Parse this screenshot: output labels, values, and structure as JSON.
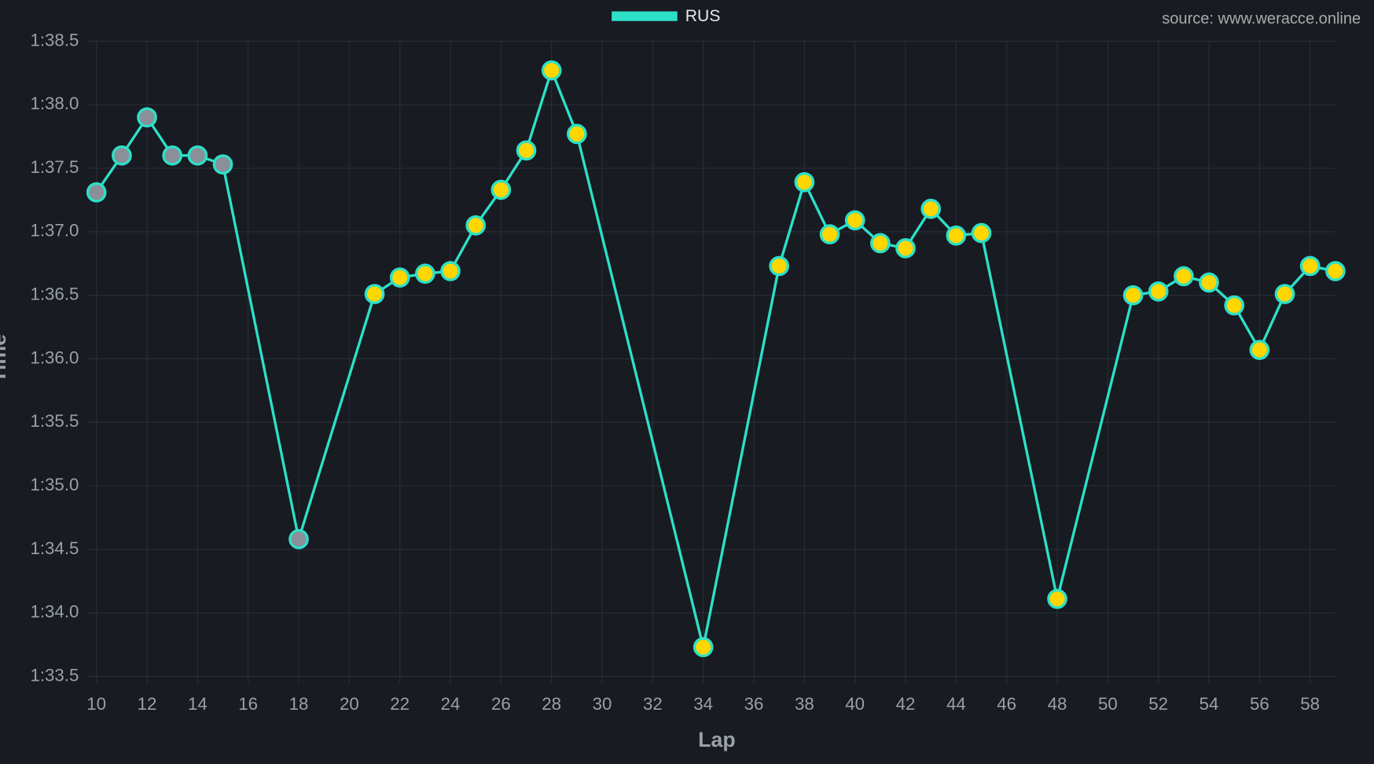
{
  "chart_data": {
    "type": "line",
    "legend": "RUS",
    "watermark": "source: www.weracce.online",
    "x_label": "Lap",
    "y_label": "Time",
    "x": [
      10,
      11,
      12,
      13,
      14,
      15,
      18,
      21,
      22,
      23,
      24,
      25,
      26,
      27,
      28,
      29,
      34,
      37,
      38,
      39,
      40,
      41,
      42,
      43,
      44,
      45,
      48,
      51,
      52,
      53,
      54,
      55,
      56,
      57,
      58,
      59
    ],
    "series": [
      {
        "name": "RUS",
        "color": "#2de0c8",
        "values": [
          97.31,
          97.6,
          97.9,
          97.6,
          97.6,
          97.53,
          94.58,
          96.51,
          96.64,
          96.67,
          96.69,
          97.05,
          97.33,
          97.64,
          98.27,
          97.77,
          93.73,
          96.73,
          97.39,
          96.98,
          97.09,
          96.91,
          96.87,
          97.18,
          96.97,
          96.99,
          94.11,
          96.5,
          96.53,
          96.65,
          96.6,
          96.42,
          96.07,
          96.51,
          96.73,
          96.69
        ],
        "marker_colors": [
          "#8a8f99",
          "#8a8f99",
          "#8a8f99",
          "#8a8f99",
          "#8a8f99",
          "#8a8f99",
          "#8a8f99",
          "#ffd600",
          "#ffd600",
          "#ffd600",
          "#ffd600",
          "#ffd600",
          "#ffd600",
          "#ffd600",
          "#ffd600",
          "#ffd600",
          "#ffd600",
          "#ffd600",
          "#ffd600",
          "#ffd600",
          "#ffd600",
          "#ffd600",
          "#ffd600",
          "#ffd600",
          "#ffd600",
          "#ffd600",
          "#ffd600",
          "#ffd600",
          "#ffd600",
          "#ffd600",
          "#ffd600",
          "#ffd600",
          "#ffd600",
          "#ffd600",
          "#ffd600",
          "#ffd600"
        ]
      }
    ],
    "xlim": [
      10,
      59
    ],
    "xticks": [
      10,
      12,
      14,
      16,
      18,
      20,
      22,
      24,
      26,
      28,
      30,
      32,
      34,
      36,
      38,
      40,
      42,
      44,
      46,
      48,
      50,
      52,
      54,
      56,
      58
    ],
    "ylim": [
      93.5,
      98.5
    ],
    "yticks": [
      {
        "value": 93.5,
        "label": "1:33.5"
      },
      {
        "value": 94,
        "label": "1:34.0"
      },
      {
        "value": 94.5,
        "label": "1:34.5"
      },
      {
        "value": 95,
        "label": "1:35.0"
      },
      {
        "value": 95.5,
        "label": "1:35.5"
      },
      {
        "value": 96,
        "label": "1:36.0"
      },
      {
        "value": 96.5,
        "label": "1:36.5"
      },
      {
        "value": 97,
        "label": "1:37.0"
      },
      {
        "value": 97.5,
        "label": "1:37.5"
      },
      {
        "value": 98,
        "label": "1:38.0"
      },
      {
        "value": 98.5,
        "label": "1:38.5"
      }
    ],
    "grid": true
  }
}
